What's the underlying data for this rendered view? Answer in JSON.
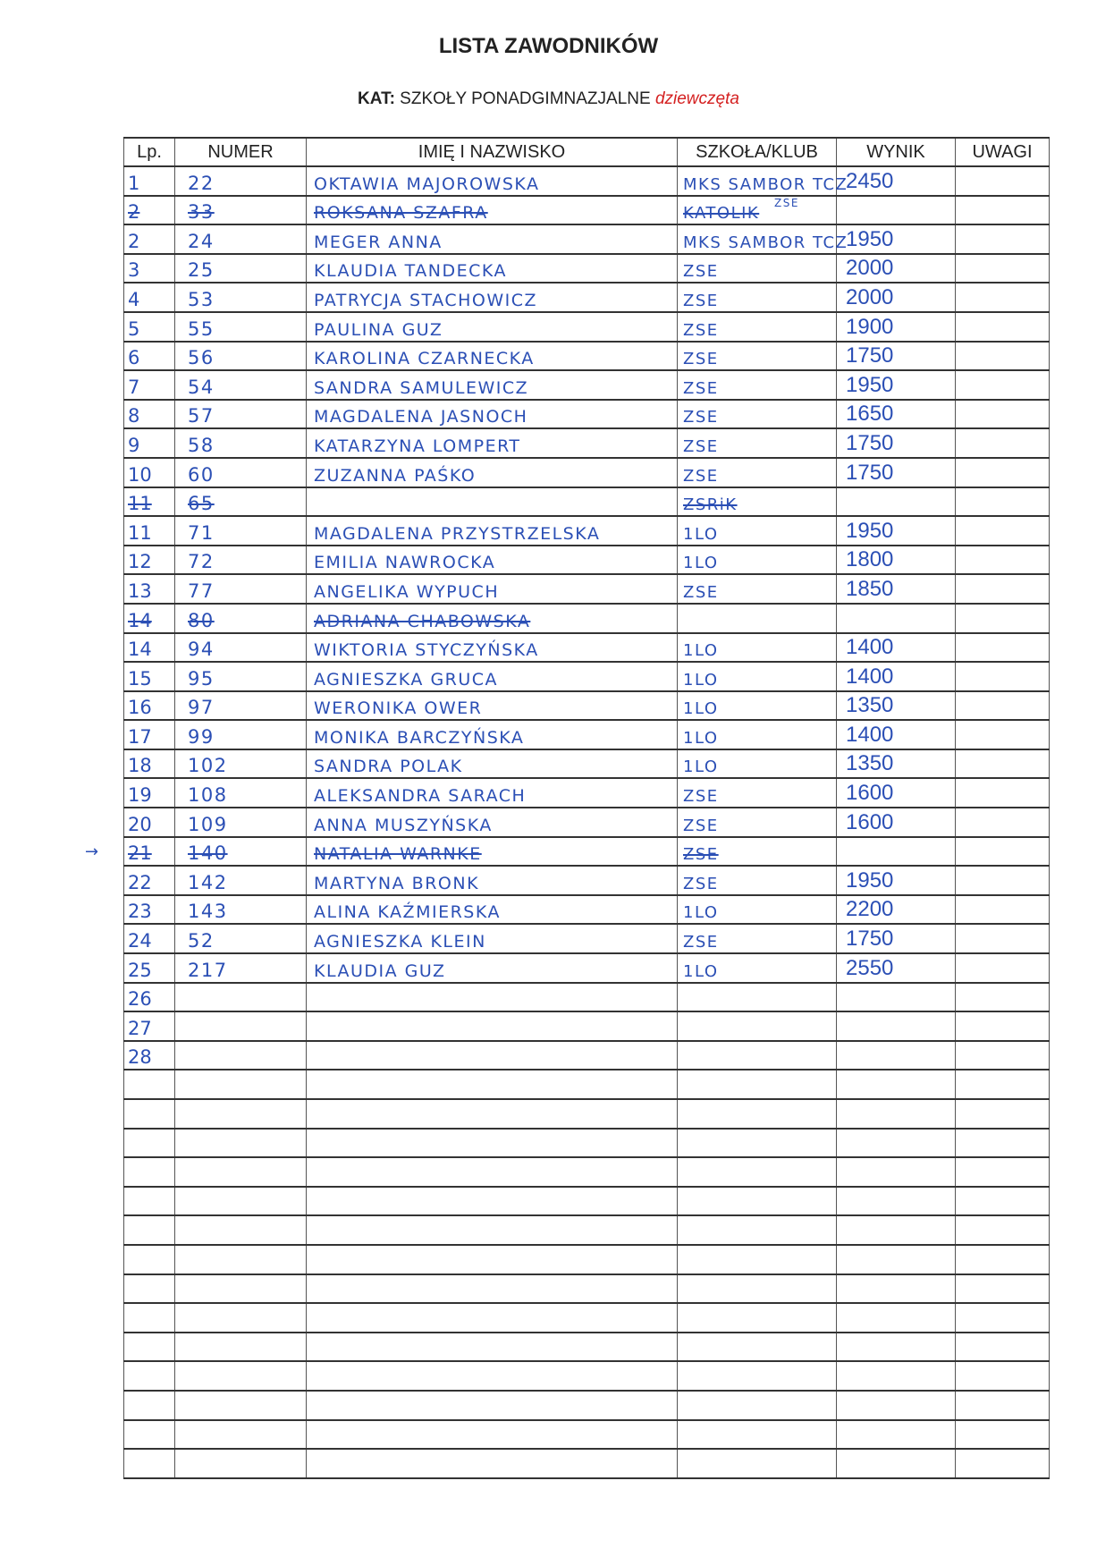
{
  "title": "LISTA ZAWODNIKÓW",
  "subtitle": {
    "label": "KAT:",
    "category": "SZKOŁY PONADGIMNAZJALNE",
    "gender": "dziewczęta"
  },
  "colors": {
    "ink": "#2b4fb5",
    "accent_red": "#d42020"
  },
  "table": {
    "headers": [
      "Lp.",
      "NUMER",
      "IMIĘ I NAZWISKO",
      "SZKOŁA/KLUB",
      "WYNIK",
      "UWAGI"
    ],
    "rows": [
      {
        "lp": "1",
        "numer": "22",
        "name": "OKTAWIA MAJOROWSKA",
        "school": "MKS SAMBOR TCZ",
        "wynik": "2450",
        "uwagi": ""
      },
      {
        "lp": "2",
        "numer": "33",
        "name": "ROKSANA SZAFRA",
        "school": "KATOLIK",
        "school_note": "ZSE",
        "wynik": "",
        "uwagi": "",
        "struck": true
      },
      {
        "lp": "2",
        "numer": "24",
        "name": "MEGER ANNA",
        "school": "MKS SAMBOR TCZ",
        "wynik": "1950",
        "uwagi": ""
      },
      {
        "lp": "3",
        "numer": "25",
        "name": "KLAUDIA TANDECKA",
        "school": "ZSE",
        "wynik": "2000",
        "uwagi": ""
      },
      {
        "lp": "4",
        "numer": "53",
        "name": "PATRYCJA STACHOWICZ",
        "school": "ZSE",
        "wynik": "2000",
        "uwagi": ""
      },
      {
        "lp": "5",
        "numer": "55",
        "name": "PAULINA GUZ",
        "school": "ZSE",
        "wynik": "1900",
        "uwagi": ""
      },
      {
        "lp": "6",
        "numer": "56",
        "name": "KAROLINA CZARNECKA",
        "school": "ZSE",
        "wynik": "1750",
        "uwagi": ""
      },
      {
        "lp": "7",
        "numer": "54",
        "name": "SANDRA SAMULEWICZ",
        "school": "ZSE",
        "wynik": "1950",
        "uwagi": ""
      },
      {
        "lp": "8",
        "numer": "57",
        "name": "MAGDALENA JASNOCH",
        "school": "ZSE",
        "wynik": "1650",
        "uwagi": ""
      },
      {
        "lp": "9",
        "numer": "58",
        "name": "KATARZYNA LOMPERT",
        "school": "ZSE",
        "wynik": "1750",
        "uwagi": ""
      },
      {
        "lp": "10",
        "numer": "60",
        "name": "ZUZANNA PAŚKO",
        "school": "ZSE",
        "wynik": "1750",
        "uwagi": ""
      },
      {
        "lp": "11",
        "numer": "65",
        "name": "",
        "school": "ZSRiK",
        "wynik": "",
        "uwagi": "",
        "struck": true
      },
      {
        "lp": "11",
        "numer": "71",
        "name": "MAGDALENA PRZYSTRZELSKA",
        "school": "1LO",
        "wynik": "1950",
        "uwagi": ""
      },
      {
        "lp": "12",
        "numer": "72",
        "name": "EMILIA NAWROCKA",
        "school": "1LO",
        "wynik": "1800",
        "uwagi": ""
      },
      {
        "lp": "13",
        "numer": "77",
        "name": "ANGELIKA WYPUCH",
        "school": "ZSE",
        "wynik": "1850",
        "uwagi": ""
      },
      {
        "lp": "14",
        "numer": "80",
        "name": "ADRIANA CHABOWSKA",
        "school": "",
        "wynik": "",
        "uwagi": "",
        "struck": true
      },
      {
        "lp": "14",
        "numer": "94",
        "name": "WIKTORIA STYCZYŃSKA",
        "school": "1LO",
        "wynik": "1400",
        "uwagi": ""
      },
      {
        "lp": "15",
        "numer": "95",
        "name": "AGNIESZKA GRUCA",
        "school": "1LO",
        "wynik": "1400",
        "uwagi": ""
      },
      {
        "lp": "16",
        "numer": "97",
        "name": "WERONIKA OWER",
        "school": "1LO",
        "wynik": "1350",
        "uwagi": ""
      },
      {
        "lp": "17",
        "numer": "99",
        "name": "MONIKA BARCZYŃSKA",
        "school": "1LO",
        "wynik": "1400",
        "uwagi": ""
      },
      {
        "lp": "18",
        "numer": "102",
        "name": "SANDRA POLAK",
        "school": "1LO",
        "wynik": "1350",
        "uwagi": ""
      },
      {
        "lp": "19",
        "numer": "108",
        "name": "ALEKSANDRA SARACH",
        "school": "ZSE",
        "wynik": "1600",
        "uwagi": ""
      },
      {
        "lp": "20",
        "numer": "109",
        "name": "ANNA MUSZYŃSKA",
        "school": "ZSE",
        "wynik": "1600",
        "uwagi": ""
      },
      {
        "lp": "21",
        "numer": "140",
        "name": "NATALIA WARNKE",
        "school": "ZSE",
        "wynik": "",
        "uwagi": "",
        "struck": true,
        "arrow": true
      },
      {
        "lp": "22",
        "numer": "142",
        "name": "MARTYNA BRONK",
        "school": "ZSE",
        "wynik": "1950",
        "uwagi": ""
      },
      {
        "lp": "23",
        "numer": "143",
        "name": "ALINA KAŹMIERSKA",
        "school": "1LO",
        "wynik": "2200",
        "uwagi": ""
      },
      {
        "lp": "24",
        "numer": "52",
        "name": "AGNIESZKA KLEIN",
        "school": "ZSE",
        "wynik": "1750",
        "uwagi": ""
      },
      {
        "lp": "25",
        "numer": "217",
        "name": "KLAUDIA GUZ",
        "school": "1LO",
        "wynik": "2550",
        "uwagi": ""
      },
      {
        "lp": "26",
        "numer": "",
        "name": "",
        "school": "",
        "wynik": "",
        "uwagi": ""
      },
      {
        "lp": "27",
        "numer": "",
        "name": "",
        "school": "",
        "wynik": "",
        "uwagi": ""
      },
      {
        "lp": "28",
        "numer": "",
        "name": "",
        "school": "",
        "wynik": "",
        "uwagi": ""
      }
    ],
    "blank_rows": 14
  }
}
